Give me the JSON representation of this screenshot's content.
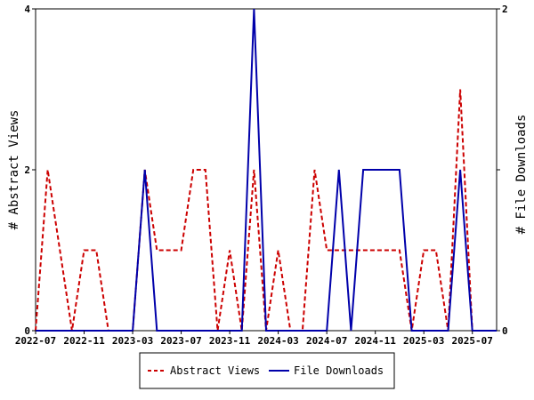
{
  "chart_data": {
    "type": "line",
    "title": "",
    "xlabel": "",
    "ylabel_left": "# Abstract Views",
    "ylabel_right": "# File Downloads",
    "x_tick_labels": [
      "2022-07",
      "2022-11",
      "2023-03",
      "2023-07",
      "2023-11",
      "2024-03",
      "2024-07",
      "2024-11",
      "2025-03",
      "2025-07"
    ],
    "x_tick_months": [
      0,
      4,
      8,
      12,
      16,
      20,
      24,
      28,
      32,
      36
    ],
    "x_range_months": [
      0,
      38
    ],
    "ylim_left": [
      0,
      4
    ],
    "ylim_right": [
      0,
      2
    ],
    "y_ticks_left": [
      "0",
      "2",
      "4"
    ],
    "y_ticks_right": [
      "0",
      "1",
      "2"
    ],
    "grid": false,
    "legend_position": "bottom-center",
    "series": [
      {
        "name": "Abstract Views",
        "axis": "left",
        "color": "#cc0000",
        "dash": true,
        "month_index": [
          0,
          1,
          2,
          3,
          4,
          5,
          6,
          7,
          8,
          9,
          10,
          11,
          12,
          13,
          14,
          15,
          16,
          17,
          18,
          19,
          20,
          21,
          22,
          23,
          24,
          25,
          26,
          27,
          28,
          29,
          30,
          31,
          32,
          33,
          34,
          35,
          36,
          37,
          38
        ],
        "values": [
          0,
          2,
          1,
          0,
          1,
          1,
          0,
          0,
          0,
          2,
          1,
          1,
          1,
          2,
          2,
          0,
          1,
          0,
          2,
          0,
          1,
          0,
          0,
          2,
          1,
          1,
          1,
          1,
          1,
          1,
          1,
          0,
          1,
          1,
          0,
          3,
          0,
          0,
          0
        ]
      },
      {
        "name": "File Downloads",
        "axis": "right",
        "color": "#0000aa",
        "dash": false,
        "month_index": [
          0,
          1,
          2,
          3,
          4,
          5,
          6,
          7,
          8,
          9,
          10,
          11,
          12,
          13,
          14,
          15,
          16,
          17,
          18,
          19,
          20,
          21,
          22,
          23,
          24,
          25,
          26,
          27,
          28,
          29,
          30,
          31,
          32,
          33,
          34,
          35,
          36,
          37,
          38
        ],
        "values": [
          0,
          0,
          0,
          0,
          0,
          0,
          0,
          0,
          0,
          1,
          0,
          0,
          0,
          0,
          0,
          0,
          0,
          0,
          2,
          0,
          0,
          0,
          0,
          0,
          0,
          1,
          0,
          1,
          1,
          1,
          1,
          0,
          0,
          0,
          0,
          1,
          0,
          0,
          0
        ]
      }
    ]
  }
}
